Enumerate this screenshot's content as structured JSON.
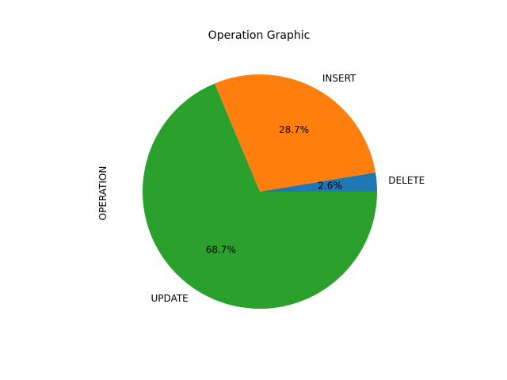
{
  "chart_data": {
    "type": "pie",
    "title": "Operation Graphic",
    "ylabel": "OPERATION",
    "categories": [
      "DELETE",
      "INSERT",
      "UPDATE"
    ],
    "values": [
      2.6,
      28.7,
      68.7
    ],
    "percent_labels": [
      "2.6%",
      "28.7%",
      "68.7%"
    ],
    "colors": [
      "#1f77b4",
      "#ff7f0e",
      "#2ca02c"
    ],
    "start_angle_deg": 0,
    "direction": "counterclockwise",
    "legend": "none"
  }
}
